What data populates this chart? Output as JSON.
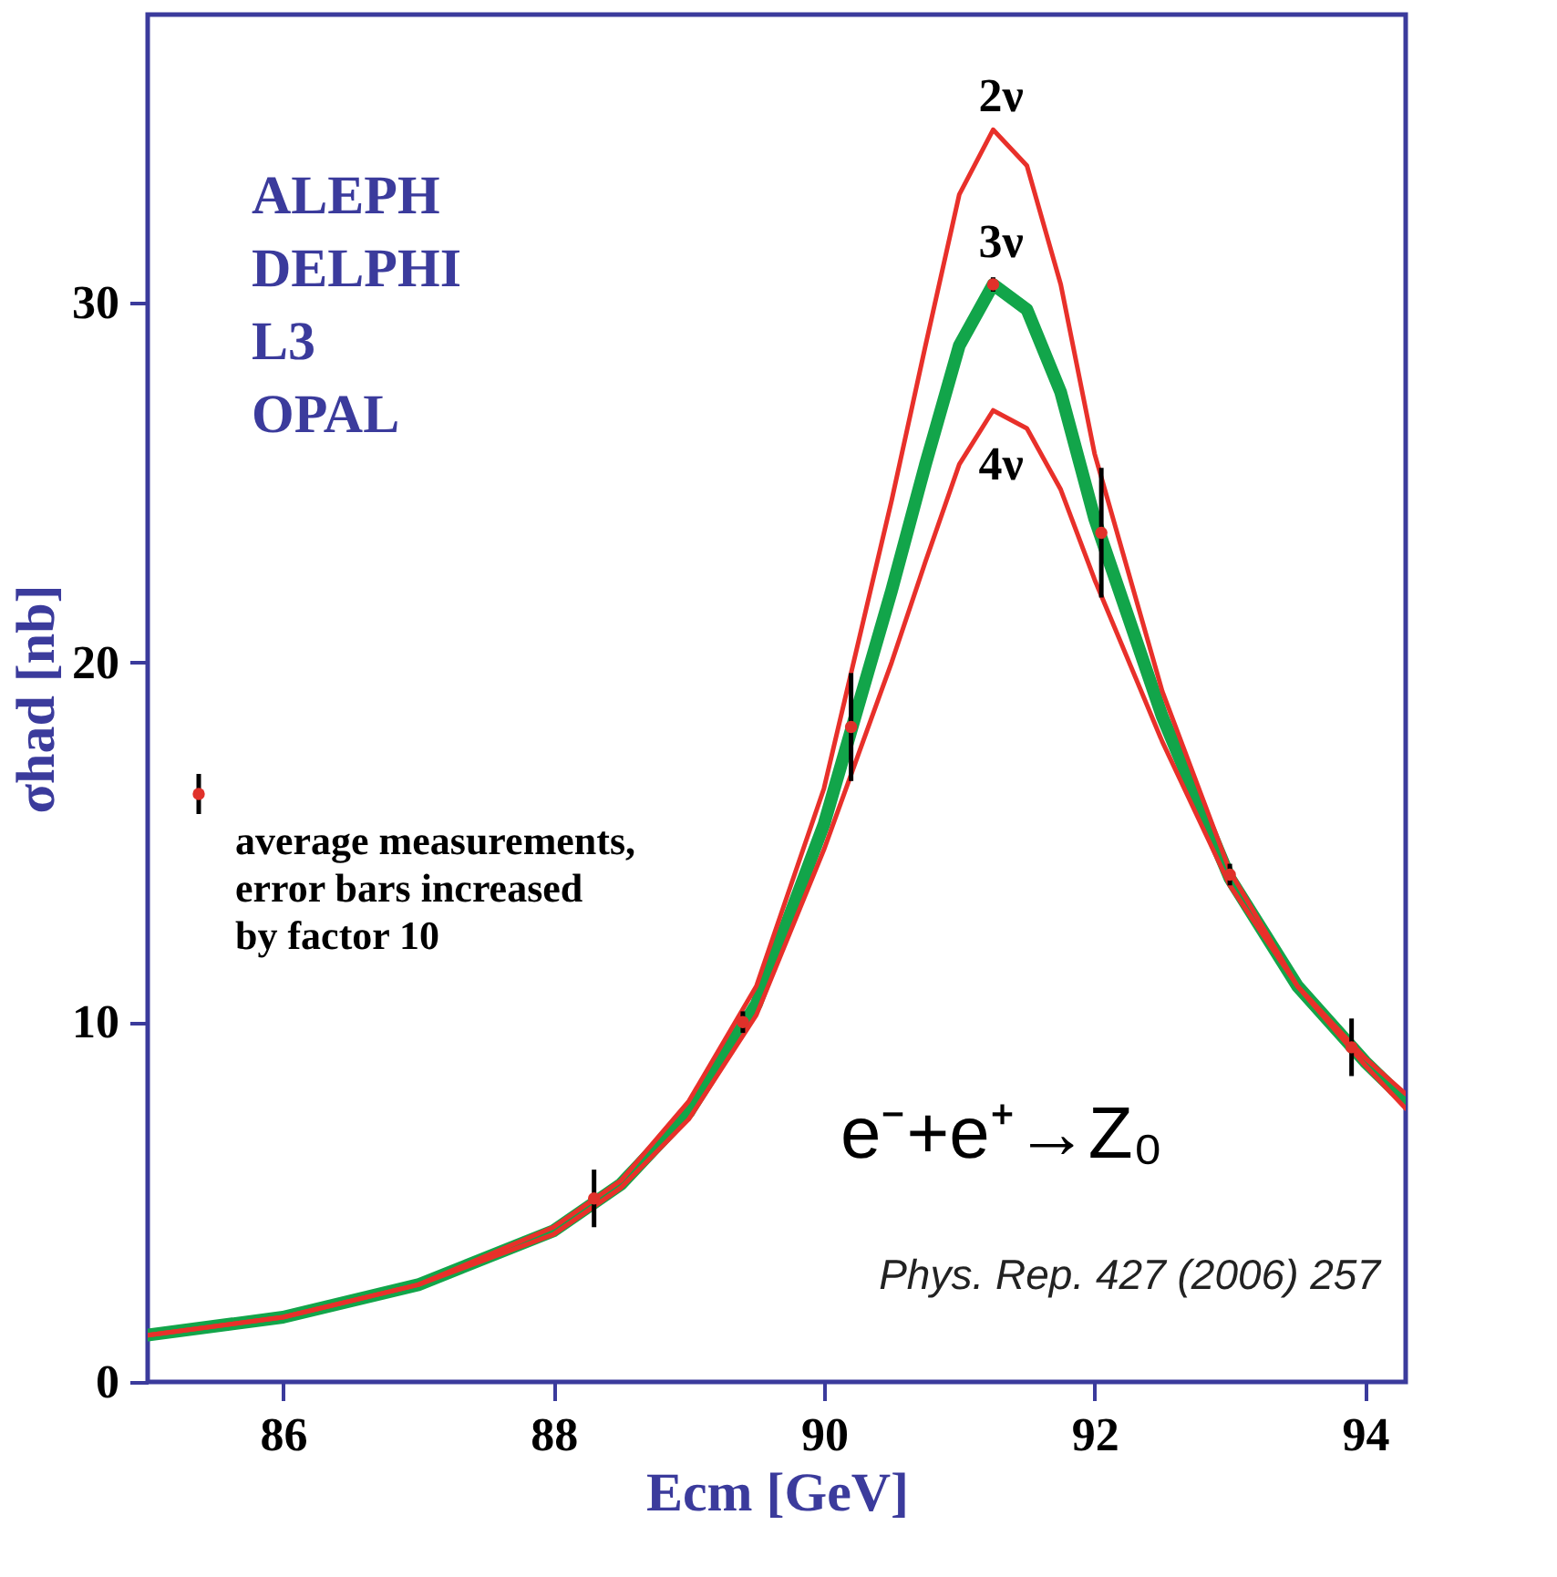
{
  "chart_data": {
    "type": "line",
    "xlabel": "Ecm [GeV]",
    "ylabel": "σhad [nb]",
    "xlim": [
      85,
      94.3
    ],
    "ylim": [
      0,
      38
    ],
    "xticks": [
      86,
      88,
      90,
      92,
      94
    ],
    "yticks": [
      0,
      10,
      20,
      30
    ],
    "grid": false,
    "legend": "left",
    "line_style": "solid",
    "series": [
      {
        "color": "#12a54a",
        "x": [
          85,
          86,
          87,
          88,
          88.5,
          89,
          89.5,
          90,
          90.5,
          90.75,
          91,
          91.25,
          91.5,
          91.75,
          92,
          92.5,
          93,
          93.5,
          94,
          94.3
        ],
        "values": [
          1.3,
          1.8,
          2.7,
          4.2,
          5.5,
          7.5,
          10.5,
          15.5,
          22.0,
          25.5,
          28.8,
          30.5,
          29.8,
          27.5,
          24.0,
          18.5,
          14.0,
          11.0,
          8.9,
          7.8
        ]
      },
      {
        "color": "#e8302a",
        "x": [
          85,
          86,
          87,
          88,
          88.5,
          89,
          89.5,
          90,
          90.5,
          90.75,
          91,
          91.25,
          91.5,
          91.75,
          92,
          92.5,
          93,
          93.5,
          94,
          94.3
        ],
        "values": [
          1.3,
          1.8,
          2.7,
          4.3,
          5.6,
          7.8,
          11.0,
          16.5,
          24.5,
          28.8,
          33.0,
          34.8,
          33.8,
          30.5,
          25.8,
          19.2,
          14.2,
          11.0,
          8.8,
          7.6
        ]
      },
      {
        "color": "#e8302a",
        "x": [
          85,
          86,
          87,
          88,
          88.5,
          89,
          89.5,
          90,
          90.5,
          90.75,
          91,
          91.25,
          91.5,
          91.75,
          92,
          92.5,
          93,
          93.5,
          94,
          94.3
        ],
        "values": [
          1.3,
          1.8,
          2.7,
          4.1,
          5.4,
          7.3,
          10.2,
          14.8,
          20.0,
          22.8,
          25.5,
          27.0,
          26.5,
          24.8,
          22.3,
          17.8,
          13.8,
          11.0,
          9.0,
          8.0
        ]
      },
      {
        "type": "scatter",
        "name": "average measurements, error bars increased by factor 10",
        "color": "#e0312a",
        "x": [
          88.3,
          89.4,
          90.2,
          91.25,
          92.05,
          93.0,
          93.9
        ],
        "values": [
          5.1,
          10.0,
          18.2,
          30.5,
          23.6,
          14.1,
          9.3
        ],
        "errors": [
          0.8,
          0.3,
          1.5,
          0.2,
          1.8,
          0.3,
          0.8
        ]
      }
    ],
    "annotations": [
      "ALEPH",
      "DELPHI",
      "L3",
      "OPAL",
      "e⁻+e⁺→Z₀",
      "Phys. Rep. 427 (2006) 257",
      "2ν",
      "3ν",
      "4ν"
    ]
  }
}
